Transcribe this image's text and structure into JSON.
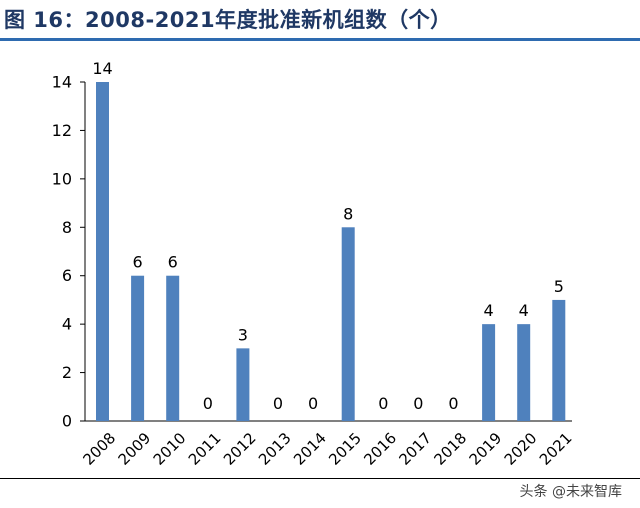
{
  "title": "图 16：2008-2021年度批准新机组数（个）",
  "watermark": "头条 @未来智库",
  "colors": {
    "bar": "#4f81bd",
    "title": "#1f3864",
    "rule": "#2e6bb0"
  },
  "chart_data": {
    "type": "bar",
    "title": "2008-2021年度批准新机组数（个）",
    "categories": [
      "2008",
      "2009",
      "2010",
      "2011",
      "2012",
      "2013",
      "2014",
      "2015",
      "2016",
      "2017",
      "2018",
      "2019",
      "2020",
      "2021"
    ],
    "values": [
      14,
      6,
      6,
      0,
      3,
      0,
      0,
      8,
      0,
      0,
      0,
      4,
      4,
      5
    ],
    "data_labels": [
      "14",
      "6",
      "6",
      "0",
      "3",
      "0",
      "0",
      "8",
      "0",
      "0",
      "0",
      "4",
      "4",
      "5"
    ],
    "y_ticks": [
      0,
      2,
      4,
      6,
      8,
      10,
      12,
      14
    ],
    "ylim": [
      0,
      14
    ],
    "xlabel": "",
    "ylabel": "",
    "grid": false,
    "legend": "none"
  }
}
